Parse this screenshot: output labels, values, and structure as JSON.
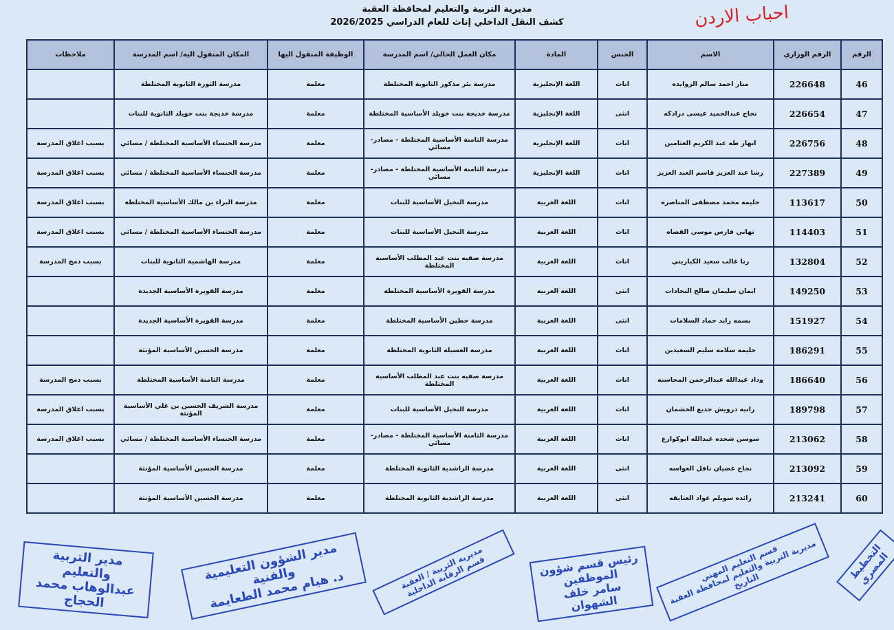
{
  "header": {
    "line1": "مديرية التربية والتعليم لمحافظة العقبة",
    "line2": "كشف النقل الداخلي إناث للعام الدراسي  2026/2025"
  },
  "columns": [
    "الرقم",
    "الرقم الوزاري",
    "الاسم",
    "الجنس",
    "المادة",
    "مكان العمل الحالي/ اسم المدرسة",
    "الوظيفة المنقول اليها",
    "المكان المنقول اليه/ اسم المدرسة",
    "ملاحظات"
  ],
  "rows": [
    [
      "46",
      "226648",
      "منار احمد سالم الزوايده",
      "اناث",
      "اللغة الإنجليزية",
      "مدرسة بئر مذكور الثانوية المختلطة",
      "معلمة",
      "مدرسة الثورة الثانوية المختلطة",
      ""
    ],
    [
      "47",
      "226654",
      "نجاح عبدالحميد عيسى درادكه",
      "انثى",
      "اللغة الإنجليزية",
      "مدرسة خديجة بنت خويلد الأساسية المختلطة",
      "معلمة",
      "مدرسة خديجة بنت خويلد الثانوية للبنات",
      ""
    ],
    [
      "48",
      "226756",
      "انهار طه عبد الكريم العثامين",
      "اناث",
      "اللغة الإنجليزية",
      "مدرسة الثامنة الأساسية المختلطة - مصادر-مسائي",
      "معلمة",
      "مدرسة الخنساء الأساسية المختلطة / مسائي",
      "بسبب اغلاق المدرسة"
    ],
    [
      "49",
      "227389",
      "رشا عبد العزيز قاسم العبد العزيز",
      "اناث",
      "اللغة الإنجليزية",
      "مدرسة الثامنة الأساسية المختلطة - مصادر-مسائي",
      "معلمة",
      "مدرسة الخنساء الأساسية المختلطة / مسائي",
      "بسبب اغلاق المدرسة"
    ],
    [
      "50",
      "113617",
      "حليمه محمد مصطفى المناصره",
      "اناث",
      "اللغة العربية",
      "مدرسة النخيل الأساسية للبنات",
      "معلمة",
      "مدرسة البراء بن مالك الأساسية المختلطة",
      "بسبب اغلاق المدرسة"
    ],
    [
      "51",
      "114403",
      "تهاني فارس موسى القضاه",
      "اناث",
      "اللغة العربية",
      "مدرسة النخيل الأساسية للبنات",
      "معلمة",
      "مدرسة الخنساء الأساسية المختلطة / مسائي",
      "بسبب اغلاق المدرسة"
    ],
    [
      "52",
      "132804",
      "رنا غالب سعيد الكباريتي",
      "اناث",
      "اللغة العربية",
      "مدرسة صفيه بنت عبد المطلب الأساسية المختلطة",
      "معلمة",
      "مدرسة الهاشمية الثانوية للبنات",
      "بسبب دمج المدرسة"
    ],
    [
      "53",
      "149250",
      "ايمان سليمان صالح النجادات",
      "انثى",
      "اللغة العربية",
      "مدرسة القويرة الأساسية المختلطة",
      "معلمة",
      "مدرسة القويرة الأساسية الجديدة",
      ""
    ],
    [
      "54",
      "151927",
      "بسمه زايد حماد السلامات",
      "انثى",
      "اللغة العربية",
      "مدرسة حطين الأساسية المختلطة",
      "معلمة",
      "مدرسة القويرة الأساسية الجديدة",
      ""
    ],
    [
      "55",
      "186291",
      "حليمه سلامه سليم السعيدين",
      "اناث",
      "اللغة العربية",
      "مدرسة العسيلة الثانوية المختلطة",
      "معلمة",
      "مدرسة الحسين الأساسية المؤنثة",
      ""
    ],
    [
      "56",
      "186640",
      "وداد عبدالله عبدالرحمن المحاسنه",
      "اناث",
      "اللغة العربية",
      "مدرسة صفيه بنت عبد المطلب الأساسية المختلطة",
      "معلمة",
      "مدرسة الثامنة الأساسية المختلطة",
      "بسبب دمج المدرسة"
    ],
    [
      "57",
      "189798",
      "رانيه درويش جديع الخشمان",
      "اناث",
      "اللغة العربية",
      "مدرسة النخيل الأساسية للبنات",
      "معلمة",
      "مدرسة الشريف الحسين بن علي الأساسية المؤنثة",
      "بسبب اغلاق المدرسة"
    ],
    [
      "58",
      "213062",
      "سوسن شحده عبدالله ابوكوارع",
      "اناث",
      "اللغة العربية",
      "مدرسة الثامنة الأساسية المختلطة - مصادر-مسائي",
      "معلمة",
      "مدرسة الخنساء الأساسية المختلطة / مسائي",
      "بسبب اغلاق المدرسة"
    ],
    [
      "59",
      "213092",
      "نجاح غضيان نافل العواسه",
      "انثى",
      "اللغة العربية",
      "مدرسة الراشدية الثانوية المختلطة",
      "معلمة",
      "مدرسة الحسين الأساسية المؤنثة",
      ""
    ],
    [
      "60",
      "213241",
      "رائده سويلم عواد العتايقه",
      "انثى",
      "اللغة العربية",
      "مدرسة الراشدية الثانوية المختلطة",
      "معلمة",
      "مدرسة الحسين الأساسية المؤنثة",
      ""
    ]
  ],
  "watermark": "احباب الاردن",
  "stamps": {
    "s1": [
      "مدير التربية والتعليم",
      "عبدالوهاب محمد الحجاج"
    ],
    "s2": [
      "مدير الشؤون التعليمية والفنية",
      "د. هيام محمد الطعايمة"
    ],
    "s3": [
      "مديرية التربية / العقبة",
      "قسم الرقابة الداخلية"
    ],
    "s4": [
      "رئيس قسم شؤون الموظفين",
      "سامر خلف الشهوان"
    ],
    "s5": [
      "قسم التعليم المهني",
      "مديرية التربية والتعليم لمحافظة العقبة",
      "التاريخ"
    ],
    "s6": [
      "التخطيط",
      "المصري"
    ]
  },
  "colors": {
    "background": "#dbe8f5",
    "header_fill": "#b4c1dc",
    "border": "#1f2f5c",
    "stamp_ink": "#2a48b8",
    "watermark": "#d8232a"
  }
}
